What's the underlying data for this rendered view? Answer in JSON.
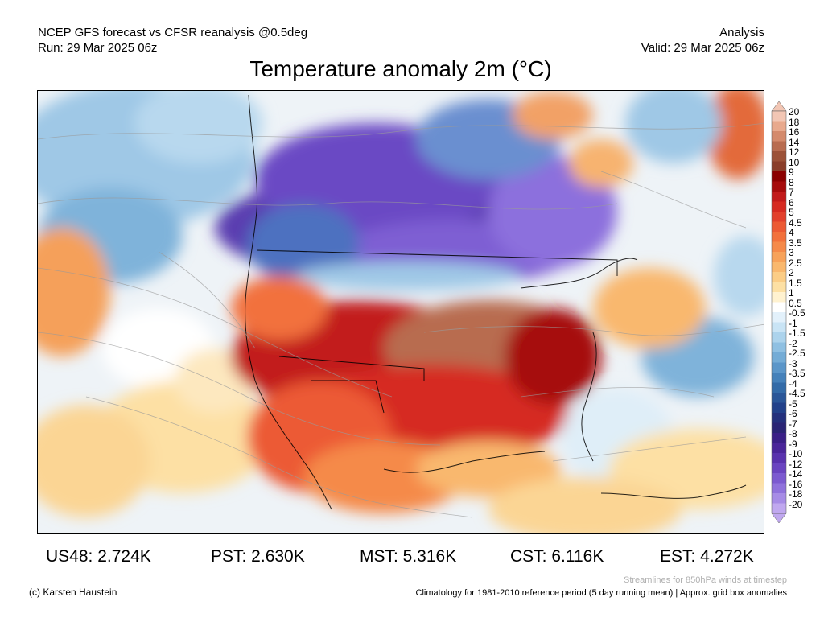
{
  "header": {
    "left_line1": "NCEP GFS forecast vs CFSR reanalysis @0.5deg",
    "left_line2": "Run: 29 Mar 2025 06z",
    "right_line1": "Analysis",
    "right_line2": "Valid: 29 Mar 2025 06z"
  },
  "title": "Temperature anomaly 2m (°C)",
  "colorbar": {
    "labels": [
      "20",
      "18",
      "16",
      "14",
      "12",
      "10",
      "9",
      "8",
      "7",
      "6",
      "5",
      "4.5",
      "4",
      "3.5",
      "3",
      "2.5",
      "2",
      "1.5",
      "1",
      "0.5",
      "-0.5",
      "-1",
      "-1.5",
      "-2",
      "-2.5",
      "-3",
      "-3.5",
      "-4",
      "-4.5",
      "-5",
      "-6",
      "-7",
      "-8",
      "-9",
      "-10",
      "-12",
      "-14",
      "-16",
      "-18",
      "-20"
    ],
    "colors": [
      "#f2c6b4",
      "#e8a98d",
      "#d48a6c",
      "#b86c50",
      "#9c5238",
      "#8a3e2a",
      "#8b0000",
      "#a60b0b",
      "#c21a1a",
      "#d62a21",
      "#e2402c",
      "#ec5a34",
      "#f2713c",
      "#f58a4a",
      "#f7a25a",
      "#f9b86e",
      "#fbcd86",
      "#fde0a4",
      "#fff2d0",
      "#ffffff",
      "#e3f1fb",
      "#c9e4f5",
      "#acd3ec",
      "#8fc0e2",
      "#74acd6",
      "#5b96c9",
      "#4581ba",
      "#336ba8",
      "#2a5698",
      "#22418a",
      "#24307c",
      "#2a2474",
      "#3a1f86",
      "#4a2599",
      "#5932ad",
      "#6a44c0",
      "#7c5ad0",
      "#9072dc",
      "#a78ce6",
      "#c0a8ef"
    ]
  },
  "stats": [
    {
      "label": "US48: 2.724K"
    },
    {
      "label": "PST: 2.630K"
    },
    {
      "label": "MST: 5.316K"
    },
    {
      "label": "CST: 6.116K"
    },
    {
      "label": "EST: 4.272K"
    }
  ],
  "footer": {
    "credit": "(c) Karsten Haustein",
    "streamline_note": "Streamlines for 850hPa winds at timestep",
    "climatology_note": "Climatology for 1981-2010 reference period (5 day running mean) | Approx. grid box anomalies"
  }
}
